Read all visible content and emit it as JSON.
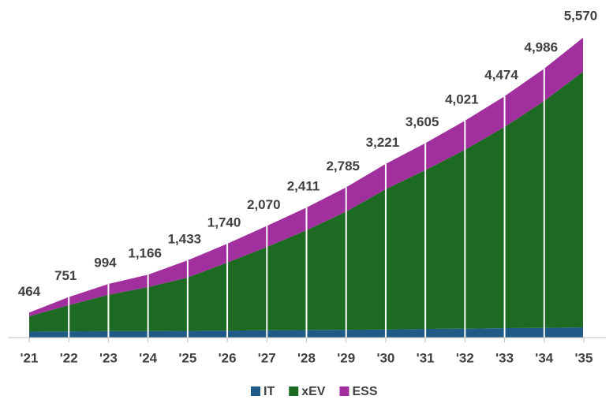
{
  "chart_data": {
    "type": "stacked-area",
    "categories": [
      "'21",
      "'22",
      "'23",
      "'24",
      "'25",
      "'26",
      "'27",
      "'28",
      "'29",
      "'30",
      "'31",
      "'32",
      "'33",
      "'34",
      "'35"
    ],
    "series": [
      {
        "name": "IT",
        "color": "#1f5b86",
        "values": [
          110,
          115,
          120,
          120,
          125,
          130,
          135,
          140,
          145,
          150,
          160,
          165,
          175,
          180,
          190
        ]
      },
      {
        "name": "xEV",
        "color": "#1d6b23",
        "values": [
          284,
          486,
          674,
          816,
          988,
          1260,
          1545,
          1851,
          2190,
          2601,
          2945,
          3316,
          3729,
          4206,
          4750
        ]
      },
      {
        "name": "ESS",
        "color": "#a1309e",
        "values": [
          70,
          150,
          200,
          230,
          320,
          350,
          390,
          420,
          450,
          470,
          500,
          540,
          570,
          600,
          630
        ]
      }
    ],
    "totals": [
      464,
      751,
      994,
      1166,
      1433,
      1740,
      2070,
      2411,
      2785,
      3221,
      3605,
      4021,
      4474,
      4986,
      5570
    ],
    "value_labels": [
      "464",
      "751",
      "994",
      "1,166",
      "1,433",
      "1,740",
      "2,070",
      "2,411",
      "2,785",
      "3,221",
      "3,605",
      "4,021",
      "4,474",
      "4,986",
      "5,570"
    ],
    "ylim": [
      0,
      5600
    ],
    "legend": "bottom"
  }
}
